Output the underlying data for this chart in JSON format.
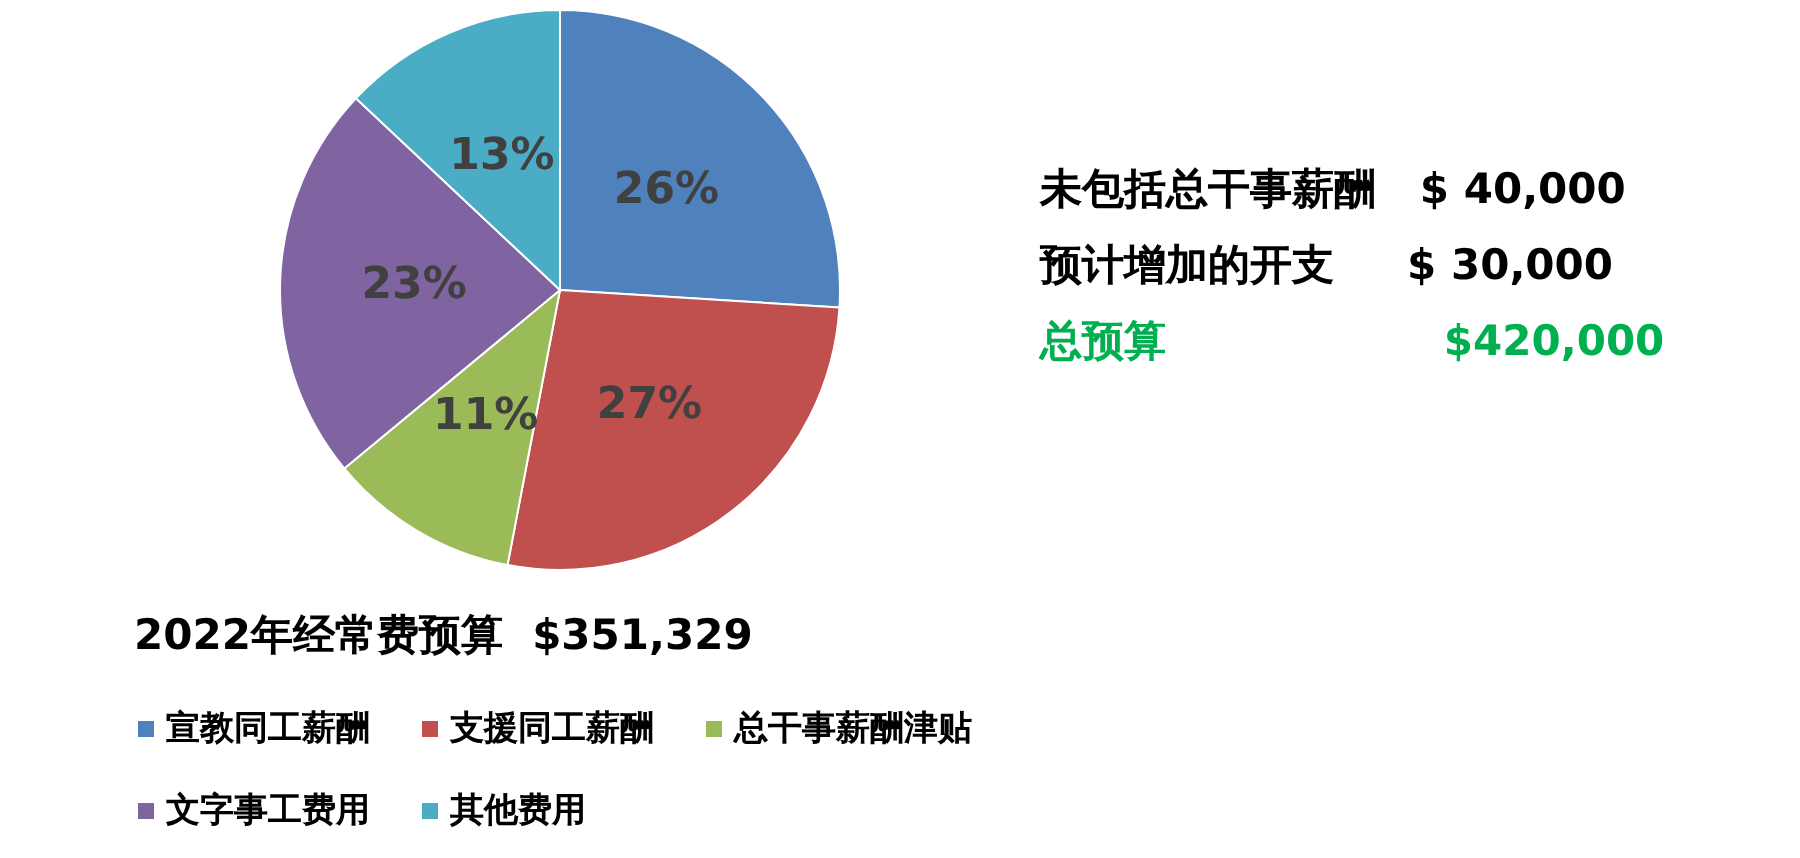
{
  "chart_data": {
    "type": "pie",
    "title": "2022年经常费预算  $351,329",
    "categories": [
      "宣教同工薪酬",
      "支援同工薪酬",
      "总干事薪酬津贴",
      "文字事工费用",
      "其他费用"
    ],
    "values": [
      26,
      27,
      11,
      23,
      13
    ],
    "value_labels": [
      "26%",
      "27%",
      "11%",
      "23%",
      "13%"
    ],
    "colors": [
      "#4f81bd",
      "#c0504d",
      "#9bbb59",
      "#8064a2",
      "#4bacc6"
    ],
    "legend": "bottom left",
    "annotations": [
      "未包括总干事薪酬   $ 40,000",
      "预计增加的开支     $ 30,000",
      "总预算                   $420,000"
    ]
  }
}
